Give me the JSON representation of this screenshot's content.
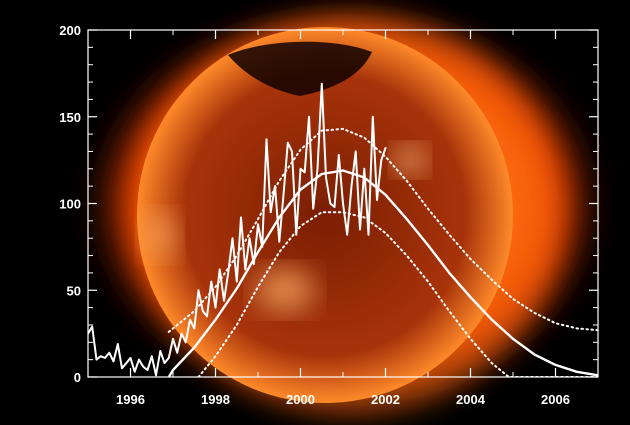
{
  "chart_data": {
    "type": "line",
    "title": "",
    "xlabel": "",
    "ylabel": "",
    "xlim": [
      1995.0,
      2007.0
    ],
    "ylim": [
      0,
      200
    ],
    "x_ticks": [
      1996,
      1998,
      2000,
      2002,
      2004,
      2006
    ],
    "x_tick_labels": [
      "1996",
      "1998",
      "2000",
      "2002",
      "2004",
      "2006"
    ],
    "y_ticks": [
      0,
      50,
      100,
      150,
      200
    ],
    "y_tick_labels": [
      "0",
      "50",
      "100",
      "150",
      "200"
    ],
    "grid": false,
    "legend": "none",
    "background": "solar x-ray image (orange-red sun disk on black)",
    "colors": {
      "series": "#ffffff",
      "background": "#000000",
      "sun_core": "#2a0400",
      "sun_corona": "#ff5a00"
    },
    "series": [
      {
        "style": "solid-jagged",
        "x": [
          1995.0,
          1995.1,
          1995.2,
          1995.3,
          1995.4,
          1995.5,
          1995.6,
          1995.7,
          1995.8,
          1995.9,
          1996.0,
          1996.1,
          1996.2,
          1996.3,
          1996.4,
          1996.5,
          1996.6,
          1996.7,
          1996.8,
          1996.9,
          1997.0,
          1997.1,
          1997.2,
          1997.3,
          1997.4,
          1997.5,
          1997.6,
          1997.7,
          1997.8,
          1997.9,
          1998.0,
          1998.1,
          1998.2,
          1998.3,
          1998.4,
          1998.5,
          1998.6,
          1998.7,
          1998.8,
          1998.9,
          1999.0,
          1999.1,
          1999.2,
          1999.3,
          1999.4,
          1999.5,
          1999.6,
          1999.7,
          1999.8,
          1999.9,
          2000.0,
          2000.1,
          2000.2,
          2000.3,
          2000.4,
          2000.5,
          2000.6,
          2000.7,
          2000.8,
          2000.9,
          2001.0,
          2001.1,
          2001.2,
          2001.3,
          2001.4,
          2001.5,
          2001.6,
          2001.7,
          2001.8,
          2001.9,
          2002.0
        ],
        "values": [
          25,
          29,
          10,
          12,
          11,
          14,
          9,
          19,
          5,
          8,
          11,
          3,
          10,
          6,
          4,
          12,
          1,
          15,
          8,
          11,
          22,
          14,
          25,
          20,
          33,
          28,
          50,
          38,
          35,
          55,
          40,
          62,
          44,
          60,
          80,
          55,
          92,
          62,
          80,
          65,
          88,
          75,
          137,
          95,
          110,
          78,
          105,
          135,
          130,
          82,
          120,
          118,
          150,
          97,
          120,
          169,
          115,
          100,
          98,
          128,
          100,
          82,
          110,
          130,
          85,
          120,
          82,
          150,
          102,
          125,
          132
        ]
      },
      {
        "style": "solid-smooth",
        "x": [
          1996.9,
          1997.0,
          1997.5,
          1998.0,
          1998.5,
          1999.0,
          1999.5,
          2000.0,
          2000.5,
          2001.0,
          2001.5,
          2002.0,
          2002.5,
          2003.0,
          2003.5,
          2004.0,
          2004.5,
          2005.0,
          2005.5,
          2006.0,
          2006.5,
          2007.0
        ],
        "values": [
          0,
          4,
          17,
          33,
          51,
          72,
          92,
          108,
          117,
          119,
          115,
          105,
          91,
          76,
          60,
          46,
          33,
          22,
          13,
          7,
          3,
          1
        ]
      },
      {
        "style": "dotted-upper",
        "x": [
          1996.9,
          1997.0,
          1997.5,
          1998.0,
          1998.5,
          1999.0,
          1999.5,
          2000.0,
          2000.5,
          2001.0,
          2001.5,
          2002.0,
          2002.5,
          2003.0,
          2003.5,
          2004.0,
          2004.5,
          2005.0,
          2005.5,
          2006.0,
          2006.5,
          2007.0
        ],
        "values": [
          26,
          28,
          38,
          52,
          70,
          91,
          113,
          131,
          142,
          143,
          138,
          127,
          113,
          97,
          82,
          68,
          56,
          45,
          37,
          31,
          28,
          27
        ]
      },
      {
        "style": "dotted-lower",
        "x": [
          1997.6,
          1998.0,
          1998.5,
          1999.0,
          1999.5,
          2000.0,
          2000.5,
          2001.0,
          2001.5,
          2002.0,
          2002.5,
          2003.0,
          2003.5,
          2004.0,
          2004.5,
          2004.9,
          2005.0,
          2006.0,
          2007.0
        ],
        "values": [
          0,
          12,
          30,
          52,
          72,
          87,
          95,
          95,
          92,
          83,
          70,
          55,
          38,
          22,
          8,
          0,
          0,
          0,
          0
        ]
      }
    ]
  }
}
